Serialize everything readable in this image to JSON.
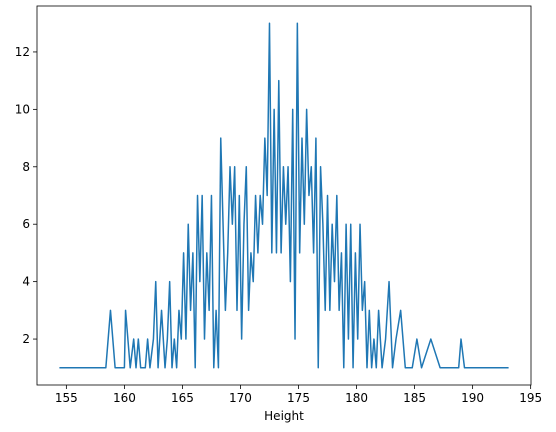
{
  "chart_data": {
    "type": "line",
    "x_label": "Height",
    "color": "#1f77b4",
    "x": [
      154.4,
      158.4,
      158.8,
      159.2,
      160.0,
      160.1,
      160.5,
      160.8,
      161.0,
      161.2,
      161.4,
      161.8,
      162.0,
      162.2,
      162.5,
      162.7,
      162.9,
      163.2,
      163.5,
      163.7,
      163.9,
      164.1,
      164.3,
      164.5,
      164.7,
      164.9,
      165.1,
      165.3,
      165.5,
      165.7,
      165.9,
      166.1,
      166.3,
      166.5,
      166.7,
      166.9,
      167.1,
      167.3,
      167.5,
      167.7,
      167.9,
      168.1,
      168.3,
      168.5,
      168.7,
      168.9,
      169.1,
      169.3,
      169.5,
      169.7,
      169.9,
      170.1,
      170.3,
      170.5,
      170.7,
      170.9,
      171.1,
      171.3,
      171.5,
      171.7,
      171.9,
      172.1,
      172.3,
      172.5,
      172.7,
      172.9,
      173.1,
      173.3,
      173.5,
      173.7,
      173.9,
      174.1,
      174.3,
      174.5,
      174.7,
      174.9,
      175.1,
      175.3,
      175.5,
      175.7,
      175.9,
      176.1,
      176.3,
      176.5,
      176.7,
      176.9,
      177.1,
      177.3,
      177.5,
      177.7,
      177.9,
      178.1,
      178.3,
      178.5,
      178.7,
      178.9,
      179.1,
      179.3,
      179.5,
      179.7,
      179.9,
      180.1,
      180.3,
      180.5,
      180.7,
      180.9,
      181.1,
      181.3,
      181.5,
      181.7,
      181.9,
      182.2,
      182.5,
      182.8,
      183.1,
      183.4,
      183.8,
      184.2,
      184.8,
      185.2,
      185.6,
      186.4,
      187.2,
      188.8,
      189.0,
      189.3,
      193.1
    ],
    "values": [
      1,
      1,
      3,
      1,
      1,
      3,
      1,
      2,
      1,
      2,
      1,
      1,
      2,
      1,
      2,
      4,
      1,
      3,
      1,
      2,
      4,
      1,
      2,
      1,
      3,
      2,
      5,
      2,
      6,
      3,
      5,
      1,
      7,
      4,
      7,
      2,
      5,
      3,
      7,
      1,
      3,
      1,
      9,
      6,
      3,
      5,
      8,
      6,
      8,
      3,
      7,
      2,
      6,
      8,
      3,
      5,
      4,
      7,
      5,
      7,
      6,
      9,
      7,
      13,
      5,
      10,
      5,
      11,
      5,
      8,
      6,
      8,
      4,
      10,
      2,
      13,
      5,
      9,
      6,
      10,
      7,
      8,
      5,
      9,
      1,
      8,
      6,
      3,
      7,
      3,
      6,
      4,
      7,
      3,
      5,
      1,
      6,
      2,
      6,
      1,
      5,
      2,
      6,
      3,
      4,
      1,
      3,
      1,
      2,
      1,
      3,
      1,
      2,
      4,
      1,
      2,
      3,
      1,
      1,
      2,
      1,
      2,
      1,
      1,
      2,
      1,
      1
    ],
    "xlim": [
      152.47,
      195.03
    ],
    "ylim": [
      0.4,
      13.6
    ],
    "xticks": [
      155,
      160,
      165,
      170,
      175,
      180,
      185,
      190,
      195
    ],
    "yticks": [
      2,
      4,
      6,
      8,
      10,
      12
    ]
  }
}
